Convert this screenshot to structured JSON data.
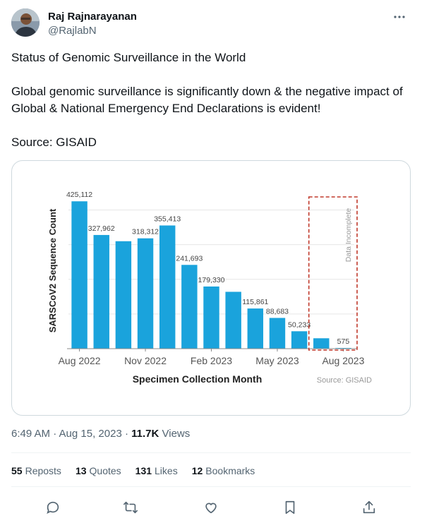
{
  "user": {
    "name": "Raj Rajnarayanan",
    "handle": "@RajlabN"
  },
  "more_icon": "more-horizontal-icon",
  "tweet": {
    "line1": "Status of Genomic Surveillance in the World",
    "line2": "Global genomic surveillance is significantly down & the negative impact of Global & National Emergency End Declarations is evident!",
    "line3": "Source: GISAID"
  },
  "chart_data": {
    "type": "bar",
    "ylabel": "SARSCoV2 Sequence Count",
    "xlabel": "Specimen Collection Month",
    "source": "Source: GISAID",
    "annotation": "Data Incomplete",
    "x_ticks": [
      "Aug 2022",
      "Nov 2022",
      "Feb 2023",
      "May 2023",
      "Aug 2023"
    ],
    "categories": [
      "Aug 2022",
      "Sep 2022",
      "Oct 2022",
      "Nov 2022",
      "Dec 2022",
      "Jan 2023",
      "Feb 2023",
      "Mar 2023",
      "Apr 2023",
      "May 2023",
      "Jun 2023",
      "Jul 2023",
      "Aug 2023"
    ],
    "values": [
      425112,
      327962,
      310000,
      318312,
      355413,
      241693,
      179330,
      164000,
      115861,
      88683,
      50233,
      30000,
      575
    ],
    "labels": [
      "425,112",
      "327,962",
      "",
      "318,312",
      "355,413",
      "241,693",
      "179,330",
      "",
      "115,861",
      "88,683",
      "50,233",
      "",
      "575"
    ],
    "ylim": [
      0,
      450000
    ],
    "grid": true,
    "bar_color": "#1aa3dc"
  },
  "timestamp": "6:49 AM · Aug 15, 2023 · ",
  "views": {
    "count": "11.7K",
    "label": "Views"
  },
  "stats": [
    {
      "n": "55",
      "label": "Reposts"
    },
    {
      "n": "13",
      "label": "Quotes"
    },
    {
      "n": "131",
      "label": "Likes"
    },
    {
      "n": "12",
      "label": "Bookmarks"
    }
  ],
  "actions": [
    "reply-icon",
    "repost-icon",
    "like-icon",
    "bookmark-icon",
    "share-icon"
  ]
}
